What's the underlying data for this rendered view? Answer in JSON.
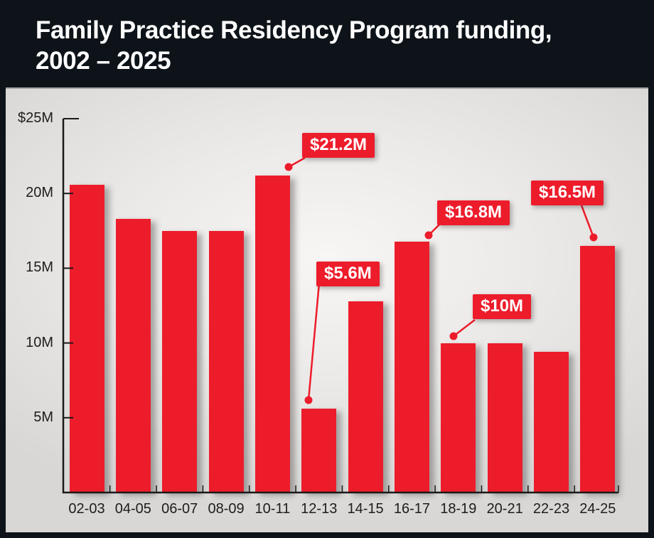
{
  "header": {
    "title_line1": "Family Practice Residency Program funding,",
    "title_line2": "2002 – 2025"
  },
  "chart_data": {
    "type": "bar",
    "title": "Family Practice Residency Program funding, 2002 – 2025",
    "categories": [
      "02-03",
      "04-05",
      "06-07",
      "08-09",
      "10-11",
      "12-13",
      "14-15",
      "16-17",
      "18-19",
      "20-21",
      "22-23",
      "24-25"
    ],
    "values": [
      20.6,
      18.3,
      17.5,
      17.5,
      21.2,
      5.6,
      12.8,
      16.8,
      10,
      10,
      9.4,
      16.5
    ],
    "value_unit": "millions of dollars",
    "xlabel": "",
    "ylabel": "",
    "ylim": [
      0,
      25
    ],
    "grid": false,
    "yticks": [
      {
        "value": 25,
        "label": "$25M"
      },
      {
        "value": 20,
        "label": "20M"
      },
      {
        "value": 15,
        "label": "15M"
      },
      {
        "value": 10,
        "label": "10M"
      },
      {
        "value": 5,
        "label": "5M"
      }
    ],
    "annotations": [
      {
        "label": "$21.2M",
        "category": "10-11",
        "value": 21.2
      },
      {
        "label": "$5.6M",
        "category": "12-13",
        "value": 5.6
      },
      {
        "label": "$16.8M",
        "category": "16-17",
        "value": 16.8
      },
      {
        "label": "$10M",
        "category": "18-19",
        "value": 10
      },
      {
        "label": "$16.5M",
        "category": "24-25",
        "value": 16.5
      }
    ]
  },
  "colors": {
    "bar_red": "#ed1c2b",
    "callout_red": "#ed1c2b",
    "header_bg": "#0d1319",
    "axis_black": "#1a1a1a",
    "label_text": "#1d1d1b",
    "callout_text": "#ffffff"
  }
}
